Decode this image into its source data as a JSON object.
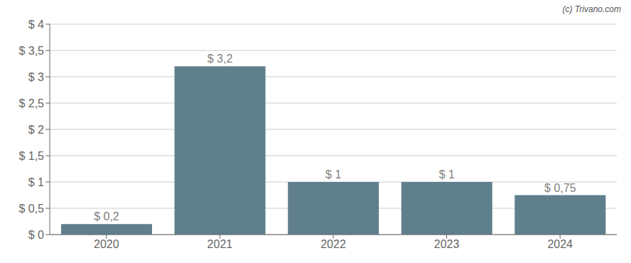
{
  "chart_data": {
    "type": "bar",
    "categories": [
      "2020",
      "2021",
      "2022",
      "2023",
      "2024"
    ],
    "values": [
      0.2,
      3.2,
      1.0,
      1.0,
      0.75
    ],
    "value_labels": [
      "$ 0,2",
      "$ 3,2",
      "$ 1",
      "$ 1",
      "$ 0,75"
    ],
    "data_labels": true,
    "color": "#5f7f8d",
    "ylim": [
      0,
      4.0
    ],
    "yticks": [
      {
        "value": 0,
        "label": "$ 0"
      },
      {
        "value": 0.5,
        "label": "$ 0,5"
      },
      {
        "value": 1.0,
        "label": "$ 1"
      },
      {
        "value": 1.5,
        "label": "$ 1,5"
      },
      {
        "value": 2.0,
        "label": "$ 2"
      },
      {
        "value": 2.5,
        "label": "$ 2,5"
      },
      {
        "value": 3.0,
        "label": "$ 3"
      },
      {
        "value": 3.5,
        "label": "$ 3,5"
      },
      {
        "value": 4.0,
        "label": "$ 4"
      }
    ],
    "grid": true,
    "annotations": [
      "(c) Trivano.com"
    ]
  }
}
